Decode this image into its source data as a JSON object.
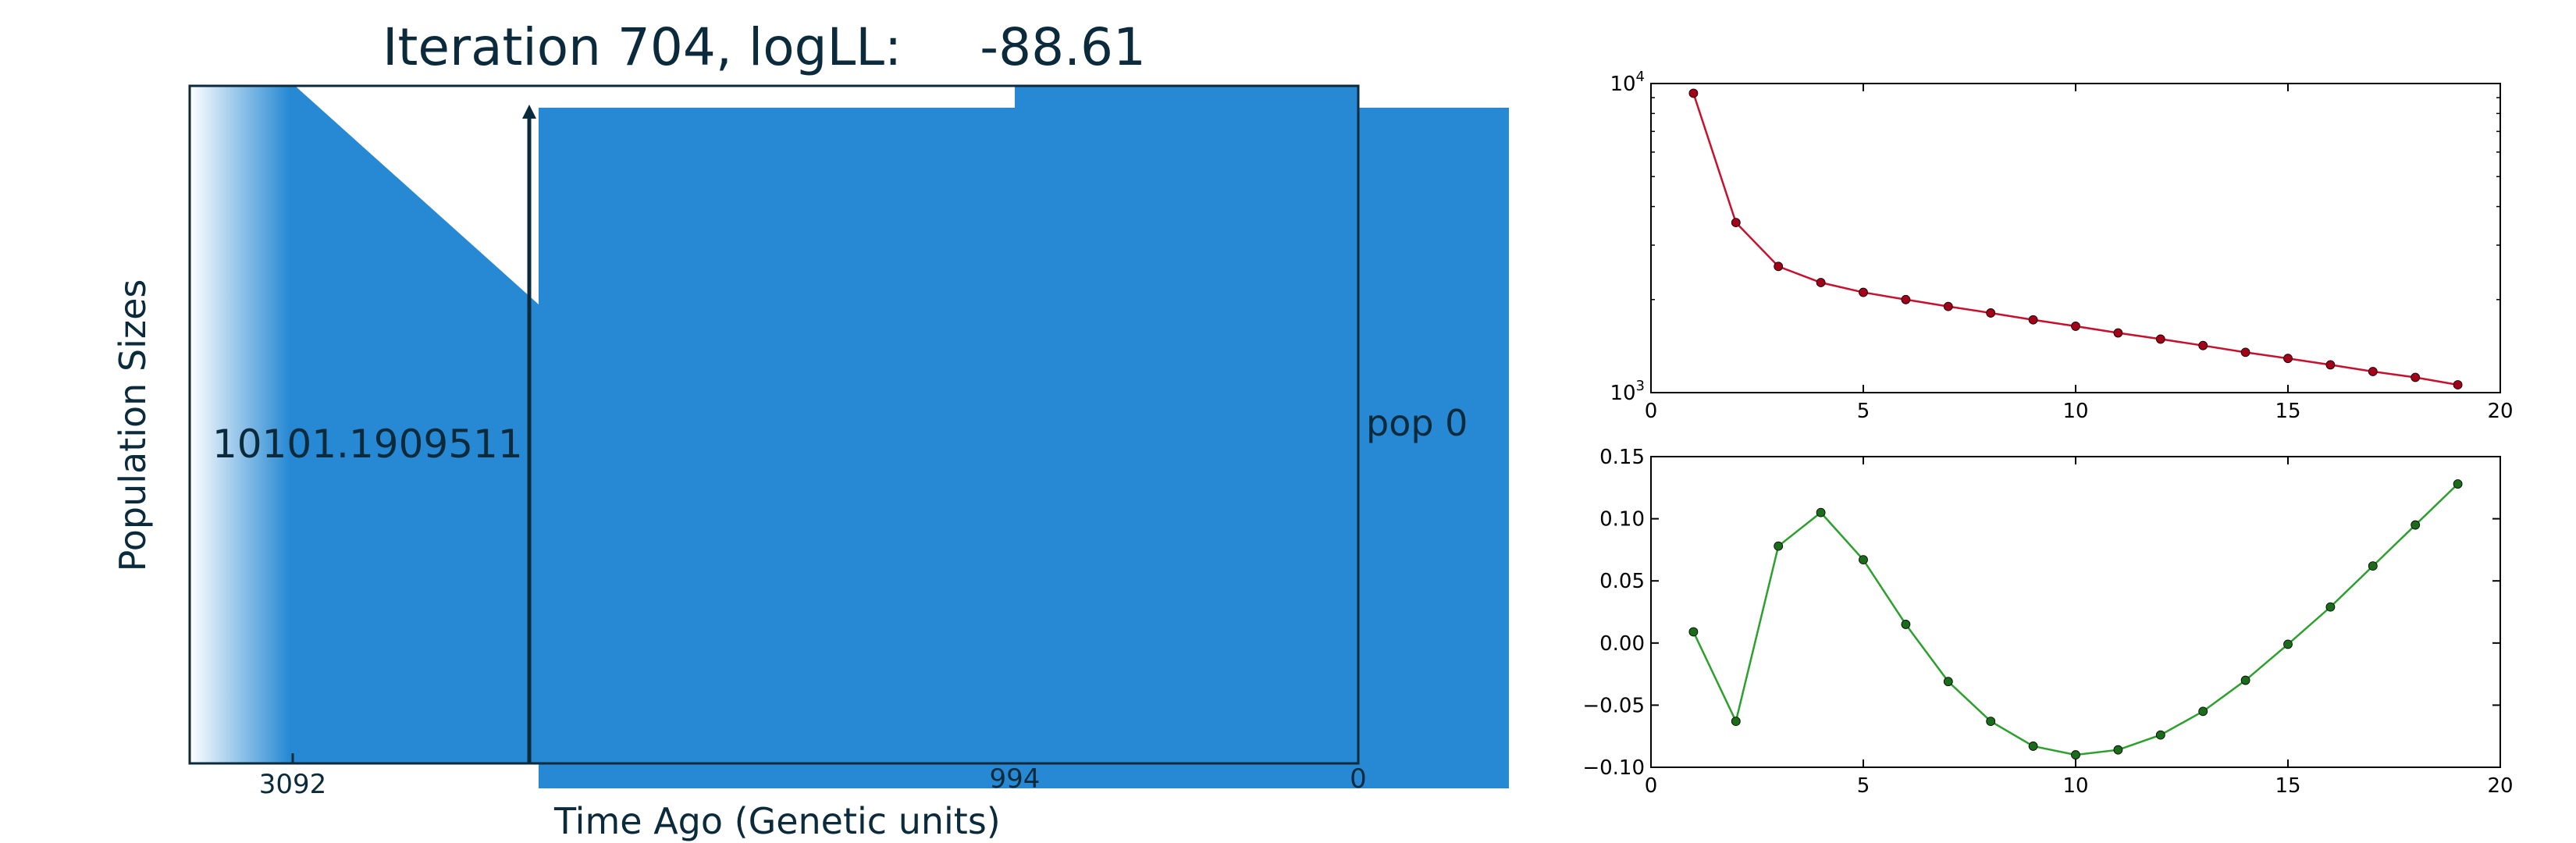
{
  "title": {
    "prefix": "Iteration 704, logLL:",
    "value": "-88.61"
  },
  "main_panel": {
    "ylabel": "Population Sizes",
    "xlabel": "Time Ago (Genetic units)",
    "x_ticks": [
      "3092",
      "994",
      "0"
    ],
    "pop_value": "10101.1909511",
    "pop_label": "pop 0",
    "fill_color": "#2789d3",
    "frame_color": "#0b2a3b"
  },
  "chart_data": [
    {
      "type": "line",
      "yscale": "log",
      "x": [
        1,
        2,
        3,
        4,
        5,
        6,
        7,
        8,
        9,
        10,
        11,
        12,
        13,
        14,
        15,
        16,
        17,
        18,
        19
      ],
      "y": [
        9300,
        3550,
        2560,
        2270,
        2110,
        2000,
        1900,
        1810,
        1720,
        1640,
        1560,
        1490,
        1420,
        1350,
        1290,
        1230,
        1170,
        1120,
        1060
      ],
      "xlim": [
        0,
        20
      ],
      "ylim": [
        1000,
        10000
      ],
      "xticks": [
        "0",
        "5",
        "10",
        "15",
        "20"
      ],
      "yticks": [
        "10^3",
        "10^4"
      ],
      "color": "#c8102e",
      "marker_color": "#a3001a"
    },
    {
      "type": "line",
      "x": [
        1,
        2,
        3,
        4,
        5,
        6,
        7,
        8,
        9,
        10,
        11,
        12,
        13,
        14,
        15,
        16,
        17,
        18,
        19
      ],
      "y": [
        0.009,
        -0.063,
        0.078,
        0.105,
        0.067,
        0.015,
        -0.031,
        -0.063,
        -0.083,
        -0.09,
        -0.086,
        -0.074,
        -0.055,
        -0.03,
        -0.001,
        0.029,
        0.062,
        0.095,
        0.128
      ],
      "xlim": [
        0,
        20
      ],
      "ylim": [
        -0.1,
        0.15
      ],
      "xticks": [
        "0",
        "5",
        "10",
        "15",
        "20"
      ],
      "yticks": [
        "−0.10",
        "−0.05",
        "0.00",
        "0.05",
        "0.10",
        "0.15"
      ],
      "yticks_values": [
        -0.1,
        -0.05,
        0.0,
        0.05,
        0.1,
        0.15
      ],
      "color": "#2ca02c",
      "marker_color": "#1a6b1a"
    }
  ]
}
